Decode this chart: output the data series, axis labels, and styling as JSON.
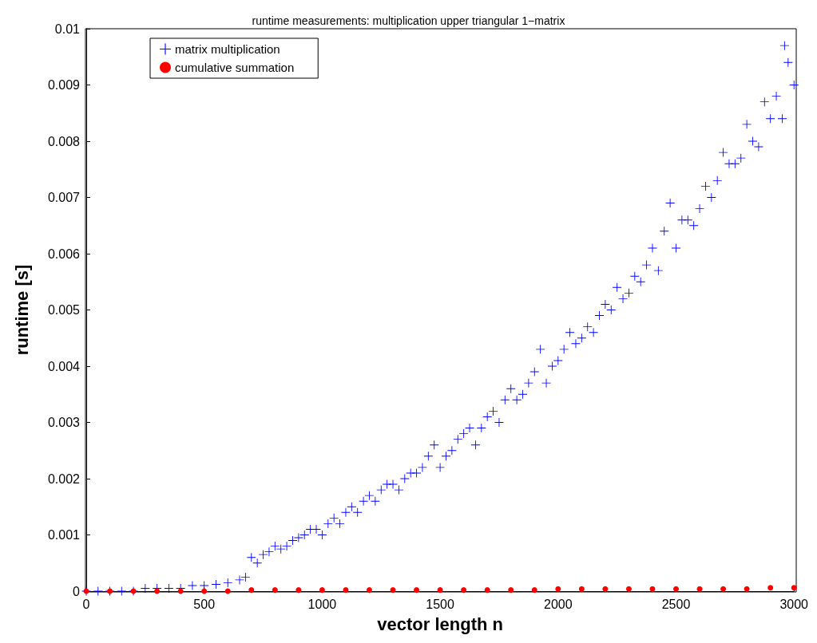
{
  "chart_data": {
    "type": "scatter",
    "title": "runtime measurements: multiplication upper triangular 1−matrix",
    "xlabel": "vector length n",
    "ylabel": "runtime [s]",
    "xlim": [
      0,
      3000
    ],
    "xticks": [
      0,
      500,
      1000,
      1500,
      2000,
      2500,
      3000
    ],
    "ylim": [
      0,
      0.01
    ],
    "yticks": [
      0,
      0.001,
      0.002,
      0.003,
      0.004,
      0.005,
      0.006,
      0.007,
      0.008,
      0.009,
      0.01
    ],
    "grid": false,
    "legend": "top left",
    "series": [
      {
        "name": "matrix multiplication",
        "color": "#0000ff",
        "marker": "cross",
        "x": [
          0,
          50,
          100,
          150,
          200,
          250,
          300,
          350,
          400,
          450,
          500,
          550,
          600,
          650,
          675,
          700,
          725,
          750,
          775,
          800,
          825,
          850,
          875,
          900,
          925,
          950,
          975,
          1000,
          1025,
          1050,
          1075,
          1100,
          1125,
          1150,
          1175,
          1200,
          1225,
          1250,
          1275,
          1300,
          1325,
          1350,
          1375,
          1400,
          1425,
          1450,
          1475,
          1500,
          1525,
          1550,
          1575,
          1600,
          1625,
          1650,
          1675,
          1700,
          1725,
          1750,
          1775,
          1800,
          1825,
          1850,
          1875,
          1900,
          1925,
          1950,
          1975,
          2000,
          2025,
          2050,
          2075,
          2100,
          2125,
          2150,
          2175,
          2200,
          2225,
          2250,
          2275,
          2300,
          2325,
          2350,
          2375,
          2400,
          2425,
          2450,
          2475,
          2500,
          2525,
          2550,
          2575,
          2600,
          2625,
          2650,
          2675,
          2700,
          2725,
          2750,
          2775,
          2800,
          2825,
          2850,
          2875,
          2900,
          2925,
          2950,
          2960,
          2975,
          3000
        ],
        "values": [
          0,
          0,
          0,
          0,
          0,
          5e-05,
          5e-05,
          5e-05,
          5e-05,
          0.0001,
          0.0001,
          0.00012,
          0.00015,
          0.0002,
          0.00025,
          0.0006,
          0.0005,
          0.00065,
          0.0007,
          0.0008,
          0.00075,
          0.0008,
          0.0009,
          0.00095,
          0.001,
          0.0011,
          0.0011,
          0.001,
          0.0012,
          0.0013,
          0.0012,
          0.0014,
          0.0015,
          0.0014,
          0.0016,
          0.0017,
          0.0016,
          0.0018,
          0.0019,
          0.0019,
          0.0018,
          0.002,
          0.0021,
          0.0021,
          0.0022,
          0.0024,
          0.0026,
          0.0022,
          0.0024,
          0.0025,
          0.0027,
          0.0028,
          0.0029,
          0.0026,
          0.0029,
          0.0031,
          0.0032,
          0.003,
          0.0034,
          0.0036,
          0.0034,
          0.0035,
          0.0037,
          0.0039,
          0.0043,
          0.0037,
          0.004,
          0.0041,
          0.0043,
          0.0046,
          0.0044,
          0.0045,
          0.0047,
          0.0046,
          0.0049,
          0.0051,
          0.005,
          0.0054,
          0.0052,
          0.0053,
          0.0056,
          0.0055,
          0.0058,
          0.0061,
          0.0057,
          0.0064,
          0.0069,
          0.0061,
          0.0066,
          0.0066,
          0.0065,
          0.0068,
          0.0072,
          0.007,
          0.0073,
          0.0078,
          0.0076,
          0.0076,
          0.0077,
          0.0083,
          0.008,
          0.0079,
          0.0087,
          0.0084,
          0.0088,
          0.0084,
          0.0097,
          0.0094,
          0.009
        ]
      },
      {
        "name": "cumulative summation",
        "color": "#ff0000",
        "marker": "circle",
        "x": [
          0,
          100,
          200,
          300,
          400,
          500,
          600,
          700,
          800,
          900,
          1000,
          1100,
          1200,
          1300,
          1400,
          1500,
          1600,
          1700,
          1800,
          1900,
          2000,
          2100,
          2200,
          2300,
          2400,
          2500,
          2600,
          2700,
          2800,
          2900,
          3000
        ],
        "values": [
          0,
          0,
          0,
          0,
          0,
          0,
          0,
          2e-05,
          2e-05,
          2e-05,
          2e-05,
          2e-05,
          2e-05,
          2e-05,
          2e-05,
          2e-05,
          2e-05,
          2e-05,
          2e-05,
          2e-05,
          4e-05,
          4e-05,
          4e-05,
          4e-05,
          4e-05,
          4e-05,
          4e-05,
          4e-05,
          4e-05,
          6e-05,
          6e-05
        ]
      }
    ]
  }
}
